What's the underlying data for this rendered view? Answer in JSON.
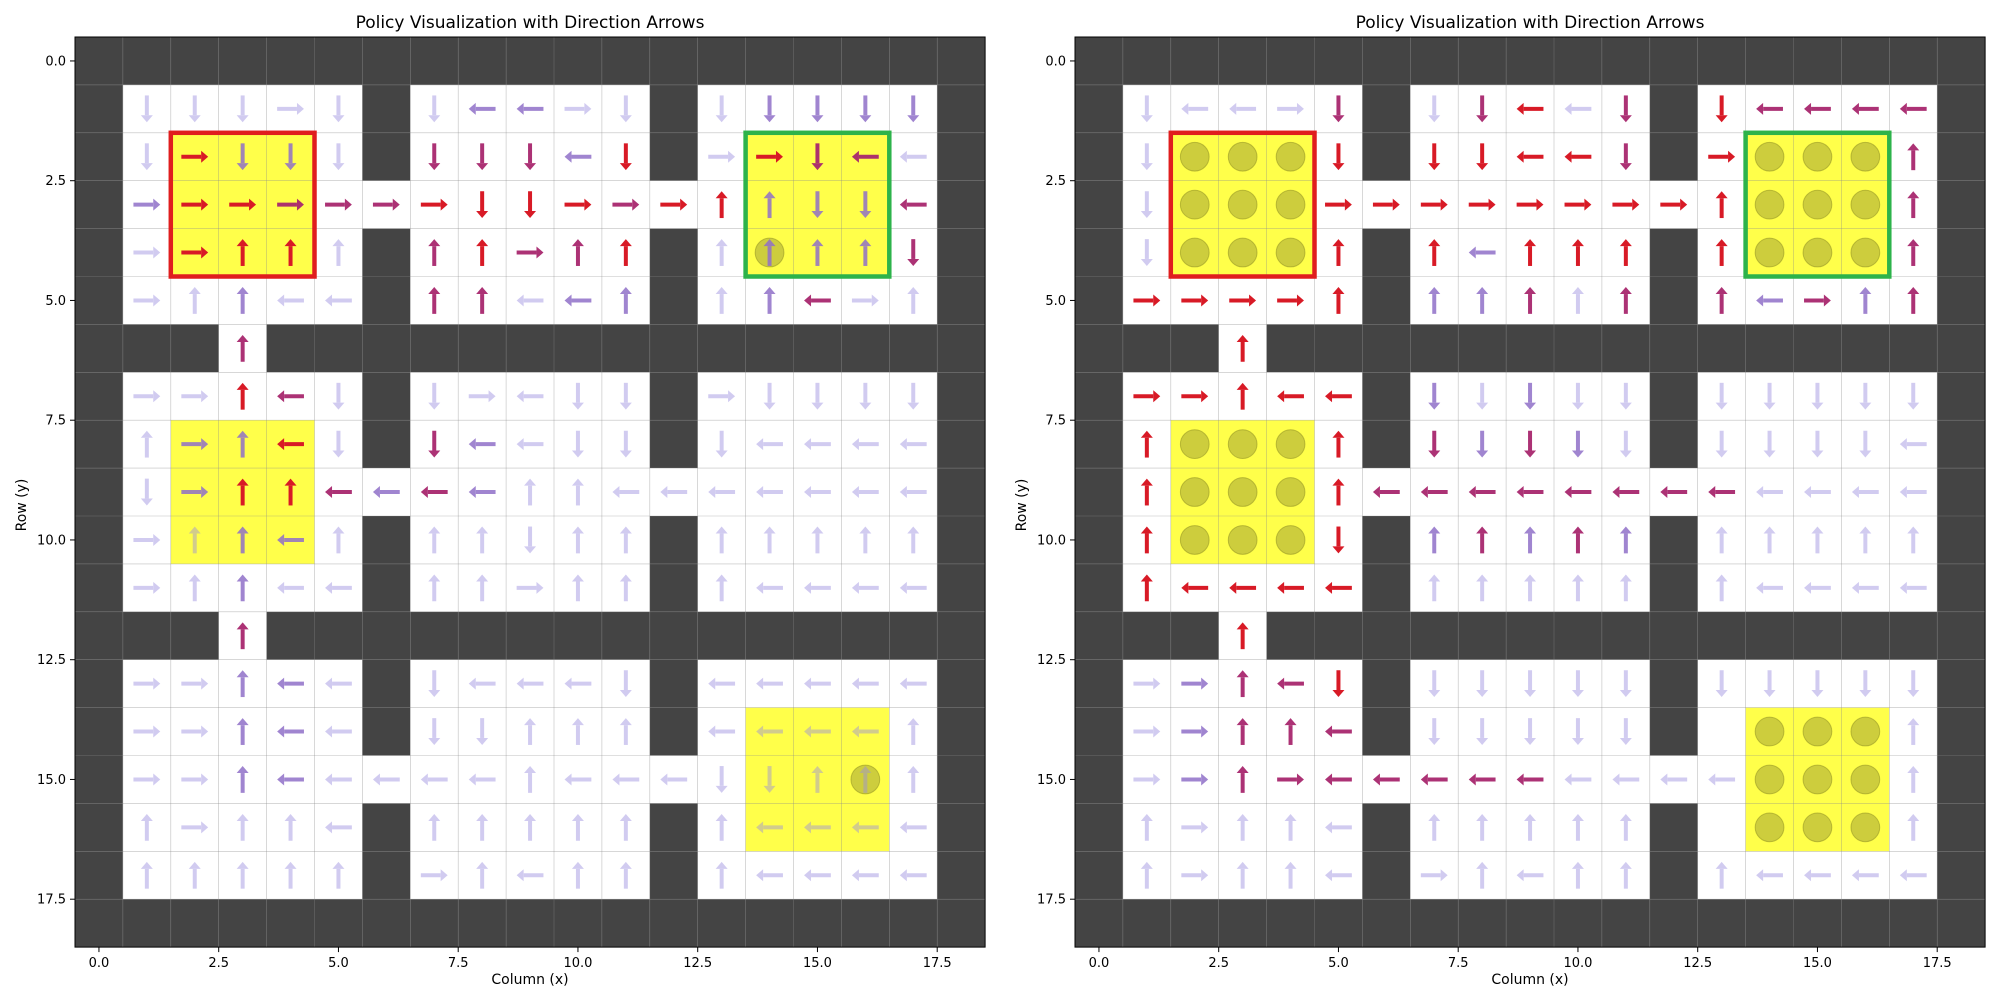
{
  "chart_data": [
    {
      "type": "heatmap",
      "title": "Policy Visualization with Direction Arrows",
      "xlabel": "Column (x)",
      "ylabel": "Row (y)",
      "xlim": [
        -0.5,
        18.5
      ],
      "ylim": [
        18.5,
        -0.5
      ],
      "xticks": [
        "0.0",
        "2.5",
        "5.0",
        "7.5",
        "10.0",
        "12.5",
        "15.0",
        "17.5"
      ],
      "yticks": [
        "0.0",
        "2.5",
        "5.0",
        "7.5",
        "10.0",
        "12.5",
        "15.0",
        "17.5"
      ],
      "grid": true,
      "grid_map": [
        "###################",
        "#.....#.....#.....#",
        "#.....#.....#.....#",
        "#.................#",
        "#.....#.....#.....#",
        "#.....#.....#.....#",
        "###.###############",
        "#.....#.....#.....#",
        "#.....#.....#.....#",
        "#.................#",
        "#.....#.....#.....#",
        "#.....#.....#.....#",
        "###.###############",
        "#.....#.....#.....#",
        "#.....#.....#.....#",
        "#.................#",
        "#.....#.....#.....#",
        "#.....#.....#.....#",
        "###################"
      ],
      "yellow_regions": [
        [
          2,
          2,
          4,
          4
        ],
        [
          2,
          8,
          4,
          10
        ],
        [
          14,
          2,
          16,
          4
        ],
        [
          14,
          14,
          16,
          16
        ]
      ],
      "boxes": [
        {
          "color": "#e01e1e",
          "region": [
            2,
            2,
            4,
            4
          ]
        },
        {
          "color": "#2db34a",
          "region": [
            14,
            2,
            16,
            4
          ]
        }
      ],
      "circles": [
        [
          14,
          4
        ],
        [
          16,
          15
        ]
      ],
      "policy": [
        "###################",
        "#DDDRD#DLLRD#DDDDD#",
        "#DRDDD#DDDLD#RRDLL#",
        "#RRRRRRRDDRRRUUDDL#",
        "#RRUUU#UURUU#UUUUD#",
        "#RUULL#UULLU#UULRU#",
        "###U###############",
        "#RRULD#DRLDD#RDDDD#",
        "#URULD#DLLDD#DLLLL#",
        "#DRUULLLLUULLLLLLL#",
        "#RUULU#UUDUU#UUUUU#",
        "#RUULL#UURUU#ULLLL#",
        "###U###############",
        "#RRULL#DLLLD#LLLLL#",
        "#RRULL#DDUUU#LLLLU#",
        "#RRULLLLLULLLDDUUU#",
        "#URUUL#UUUUU#ULLLL#",
        "#UUUUU#RULUU#ULLLL#",
        "###################"
      ],
      "strength": [
        "0000000000000000000",
        "0111112022112022220",
        "0142212333242043310",
        "0244333444434422230",
        "0144412343342022230",
        "0112112331221023110",
        "0003000000000000000",
        "0114312111112111110",
        "0122411321112111110",
        "0124432321111111110",
        "0112211111111111110",
        "0112111111111111110",
        "0003000000000000000",
        "0112211111111111110",
        "0112211111111111110",
        "0112211111111111110",
        "0111111111111111110",
        "0111111111111111110",
        "0000000000000000000"
      ]
    },
    {
      "type": "heatmap",
      "title": "Policy Visualization with Direction Arrows",
      "xlabel": "Column (x)",
      "ylabel": "Row (y)",
      "xlim": [
        -0.5,
        18.5
      ],
      "ylim": [
        18.5,
        -0.5
      ],
      "xticks": [
        "0.0",
        "2.5",
        "5.0",
        "7.5",
        "10.0",
        "12.5",
        "15.0",
        "17.5"
      ],
      "yticks": [
        "0.0",
        "2.5",
        "5.0",
        "7.5",
        "10.0",
        "12.5",
        "15.0",
        "17.5"
      ],
      "grid": true,
      "grid_map": [
        "###################",
        "#.....#.....#.....#",
        "#.....#.....#.....#",
        "#.................#",
        "#.....#.....#.....#",
        "#.....#.....#.....#",
        "###.###############",
        "#.....#.....#.....#",
        "#.....#.....#.....#",
        "#.................#",
        "#.....#.....#.....#",
        "#.....#.....#.....#",
        "###.###############",
        "#.....#.....#.....#",
        "#.....#.....#.....#",
        "#.................#",
        "#.....#.....#.....#",
        "#.....#.....#.....#",
        "###################"
      ],
      "yellow_regions": [
        [
          2,
          2,
          4,
          4
        ],
        [
          2,
          8,
          4,
          10
        ],
        [
          14,
          2,
          16,
          4
        ],
        [
          14,
          14,
          16,
          16
        ]
      ],
      "boxes": [
        {
          "color": "#e01e1e",
          "region": [
            2,
            2,
            4,
            4
          ]
        },
        {
          "color": "#2db34a",
          "region": [
            14,
            2,
            16,
            4
          ]
        }
      ],
      "circles": [
        [
          2,
          2
        ],
        [
          3,
          2
        ],
        [
          4,
          2
        ],
        [
          2,
          3
        ],
        [
          3,
          3
        ],
        [
          4,
          3
        ],
        [
          2,
          4
        ],
        [
          3,
          4
        ],
        [
          4,
          4
        ],
        [
          2,
          8
        ],
        [
          3,
          8
        ],
        [
          4,
          8
        ],
        [
          2,
          9
        ],
        [
          3,
          9
        ],
        [
          4,
          9
        ],
        [
          2,
          10
        ],
        [
          3,
          10
        ],
        [
          4,
          10
        ],
        [
          14,
          2
        ],
        [
          15,
          2
        ],
        [
          16,
          2
        ],
        [
          14,
          3
        ],
        [
          15,
          3
        ],
        [
          16,
          3
        ],
        [
          14,
          4
        ],
        [
          15,
          4
        ],
        [
          16,
          4
        ],
        [
          14,
          14
        ],
        [
          15,
          14
        ],
        [
          16,
          14
        ],
        [
          14,
          15
        ],
        [
          15,
          15
        ],
        [
          16,
          15
        ],
        [
          14,
          16
        ],
        [
          15,
          16
        ],
        [
          16,
          16
        ]
      ],
      "policy": [
        "###################",
        "#DLLRD#DDLLD#DLLLL#",
        "#D...D#DDLLD#R...U#",
        "#D...RRRRRRRRU...U#",
        "#D...U#ULUUU#U...U#",
        "#RRRRU#UUUUU#ULRUU#",
        "###U###############",
        "#RRULL#DDDDD#DDDDD#",
        "#U...U#DDDDD#DDDDL#",
        "#U...ULLLLLLLLLLLL#",
        "#U...D#UUUUU#UUUUU#",
        "#ULLLL#UUUUU#ULLLL#",
        "###U###############",
        "#RRULD#DDDDD#DDDDD#",
        "#RRUUL#DDDDD#....U#",
        "#RRURLLLLLLLLL...U#",
        "#URUUL#UUUUU#....U#",
        "#URUUL#RULUU#ULLLL#",
        "###################"
      ],
      "strength": [
        "0000000000000000000",
        "0111130134130433330",
        "0100040444430400030",
        "0100044444444400030",
        "0100040424440400030",
        "0444440223130323230",
        "0004000000000000000",
        "0444440212110111110",
        "0400040323210111110",
        "0400043333333311110",
        "0400040232320111110",
        "0444440111110111110",
        "0004000000000000000",
        "0123340111110111110",
        "0123330111110000010",
        "0123333333110000010",
        "0111110111110000010",
        "0111110111110111110",
        "0000000000000000000"
      ]
    }
  ]
}
